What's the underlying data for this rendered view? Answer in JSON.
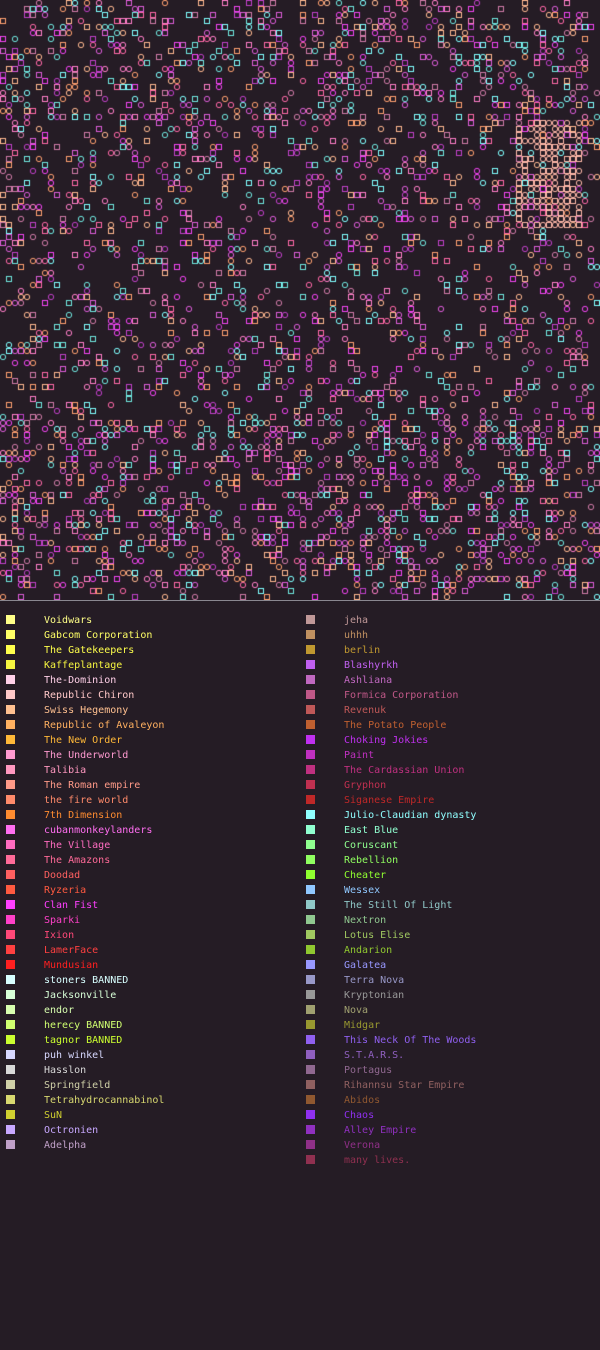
{
  "map": {
    "background": "#251c25",
    "legend_background": "#251c25",
    "border_color": "#8a8790",
    "planet_colors": [
      "#f244f2",
      "#dc5cd8",
      "#c040c8",
      "#ff7ec8",
      "#ffa070",
      "#ffb890",
      "#70e8e0",
      "#80ffff",
      "#d07aa8",
      "#ff68a8"
    ]
  },
  "factions_left": [
    {
      "name": "Voidwars",
      "color": "#ffff88"
    },
    {
      "name": "Gabcom Corporation",
      "color": "#ffff66"
    },
    {
      "name": "The Gatekeepers",
      "color": "#ffff4c"
    },
    {
      "name": "Kaffeplantage",
      "color": "#f5f540"
    },
    {
      "name": "The-Dominion",
      "color": "#ffd0e8"
    },
    {
      "name": "Republic Chiron",
      "color": "#ffc8c8"
    },
    {
      "name": "Swiss Hegemony",
      "color": "#ffc090"
    },
    {
      "name": "Republic of Avaleyon",
      "color": "#ffb060"
    },
    {
      "name": "The New Order",
      "color": "#ffb838"
    },
    {
      "name": "The Underworld",
      "color": "#ff9ad0"
    },
    {
      "name": "Talibia",
      "color": "#ff98c0"
    },
    {
      "name": "The Roman empire",
      "color": "#ff9a88"
    },
    {
      "name": "the fire world",
      "color": "#ff8a6a"
    },
    {
      "name": "7th Dimension",
      "color": "#ff8c30"
    },
    {
      "name": "cubanmonkeylanders",
      "color": "#ff6ef0"
    },
    {
      "name": "The Village",
      "color": "#ff6cc0"
    },
    {
      "name": "The Amazons",
      "color": "#ff6a98"
    },
    {
      "name": "Doodad",
      "color": "#ff6060"
    },
    {
      "name": "Ryzeria",
      "color": "#ff5a40"
    },
    {
      "name": "Clan Fist",
      "color": "#ff40ff"
    },
    {
      "name": "Sparki",
      "color": "#ff40c8"
    },
    {
      "name": "Ixion",
      "color": "#ff4878"
    },
    {
      "name": "LamerFace",
      "color": "#ff4040"
    },
    {
      "name": "Mundusian",
      "color": "#ff2020"
    },
    {
      "name": "stoners BANNED",
      "color": "#d8ffff"
    },
    {
      "name": "Jacksonville",
      "color": "#d8ffd8"
    },
    {
      "name": "endor",
      "color": "#d8ffb0"
    },
    {
      "name": "herecy BANNED",
      "color": "#d0ff70"
    },
    {
      "name": "tagnor BANNED",
      "color": "#ccff30"
    },
    {
      "name": "puh winkel",
      "color": "#d8d8ff"
    },
    {
      "name": "Hasslon",
      "color": "#d8d8d8"
    },
    {
      "name": "Springfield",
      "color": "#d0d0a8"
    },
    {
      "name": "Tetrahydrocannabinol",
      "color": "#d8d870"
    },
    {
      "name": "SuN",
      "color": "#d0d030"
    },
    {
      "name": "Octronien",
      "color": "#c8a8ff"
    },
    {
      "name": "Adelpha",
      "color": "#c0a0c8"
    }
  ],
  "factions_right": [
    {
      "name": "jeha",
      "color": "#c09898"
    },
    {
      "name": "uhhh",
      "color": "#c09060"
    },
    {
      "name": "berlin",
      "color": "#c09830"
    },
    {
      "name": "Blashyrkh",
      "color": "#c060f0"
    },
    {
      "name": "Ashliana",
      "color": "#c068c0"
    },
    {
      "name": "Formica Corporation",
      "color": "#c05888"
    },
    {
      "name": "Revenuk",
      "color": "#c05858"
    },
    {
      "name": "The Potato People",
      "color": "#c06030"
    },
    {
      "name": "Choking Jokies",
      "color": "#c030f0"
    },
    {
      "name": "Paint",
      "color": "#c030c0"
    },
    {
      "name": "The Cardassian Union",
      "color": "#c03080"
    },
    {
      "name": "Gryphon",
      "color": "#c03050"
    },
    {
      "name": "Siganese Empire",
      "color": "#c02828"
    },
    {
      "name": "Julio-Claudian dynasty",
      "color": "#90ffff"
    },
    {
      "name": "East Blue",
      "color": "#90ffd0"
    },
    {
      "name": "Coruscant",
      "color": "#90ff90"
    },
    {
      "name": "Rebellion",
      "color": "#90ff60"
    },
    {
      "name": "Cheater",
      "color": "#90ff30"
    },
    {
      "name": "Wessex",
      "color": "#90c8ff"
    },
    {
      "name": "The Still Of Light",
      "color": "#90c8c8"
    },
    {
      "name": "Nextron",
      "color": "#90c890"
    },
    {
      "name": "Lotus Elise",
      "color": "#a0c860"
    },
    {
      "name": "Andarion",
      "color": "#90c830"
    },
    {
      "name": "Galatea",
      "color": "#9898ff"
    },
    {
      "name": "Terra Nova",
      "color": "#9898c8"
    },
    {
      "name": "Kryptonian",
      "color": "#989898"
    },
    {
      "name": "Nova",
      "color": "#a0a070"
    },
    {
      "name": "Midgar",
      "color": "#989830"
    },
    {
      "name": "This Neck Of The Woods",
      "color": "#9060f0"
    },
    {
      "name": "S.T.A.R.S.",
      "color": "#9060c0"
    },
    {
      "name": "Portagus",
      "color": "#906890"
    },
    {
      "name": "Rihannsu Star Empire",
      "color": "#906060"
    },
    {
      "name": "Abidos",
      "color": "#905830"
    },
    {
      "name": "Chaos",
      "color": "#9030f0"
    },
    {
      "name": "Alley Empire",
      "color": "#9030c0"
    },
    {
      "name": "Verona",
      "color": "#903088"
    },
    {
      "name": "many lives.",
      "color": "#903050"
    }
  ]
}
